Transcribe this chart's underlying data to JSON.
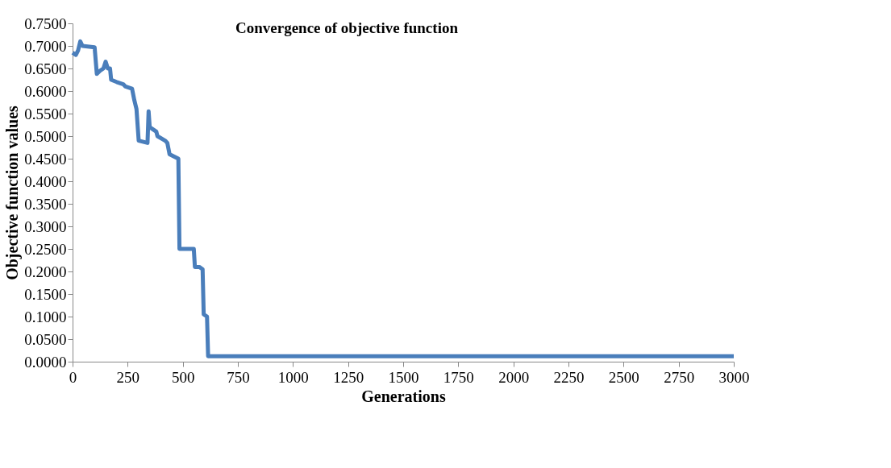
{
  "chart_data": {
    "type": "line",
    "title": "Convergence of objective function",
    "xlabel": "Generations",
    "ylabel": "Objective function values",
    "x": [
      0,
      15,
      25,
      35,
      45,
      100,
      110,
      125,
      140,
      150,
      160,
      170,
      175,
      200,
      230,
      240,
      270,
      280,
      290,
      300,
      340,
      345,
      350,
      365,
      380,
      385,
      420,
      430,
      440,
      460,
      480,
      485,
      550,
      555,
      575,
      590,
      595,
      610,
      615,
      3000
    ],
    "series": [
      {
        "color": "#4a7ebb",
        "values": [
          0.685,
          0.68,
          0.69,
          0.71,
          0.7,
          0.697,
          0.638,
          0.645,
          0.65,
          0.665,
          0.65,
          0.65,
          0.625,
          0.62,
          0.615,
          0.61,
          0.605,
          0.58,
          0.56,
          0.49,
          0.485,
          0.555,
          0.52,
          0.515,
          0.51,
          0.5,
          0.49,
          0.485,
          0.46,
          0.455,
          0.45,
          0.25,
          0.25,
          0.21,
          0.21,
          0.205,
          0.105,
          0.1,
          0.012,
          0.012
        ]
      }
    ],
    "xlim": [
      0,
      3000
    ],
    "xticks": [
      0,
      250,
      500,
      750,
      1000,
      1250,
      1500,
      1750,
      2000,
      2250,
      2500,
      2750,
      3000
    ],
    "ylim": [
      0,
      0.75
    ],
    "yticks": [
      {
        "value": 0,
        "label": "0.0000"
      },
      {
        "value": 0.05,
        "label": "0.0500"
      },
      {
        "value": 0.1,
        "label": "0.1000"
      },
      {
        "value": 0.15,
        "label": "0.1500"
      },
      {
        "value": 0.2,
        "label": "0.2000"
      },
      {
        "value": 0.25,
        "label": "0.2500"
      },
      {
        "value": 0.3,
        "label": "0.3000"
      },
      {
        "value": 0.35,
        "label": "0.3500"
      },
      {
        "value": 0.4,
        "label": "0.4000"
      },
      {
        "value": 0.45,
        "label": "0.4500"
      },
      {
        "value": 0.5,
        "label": "0.5000"
      },
      {
        "value": 0.55,
        "label": "0.5500"
      },
      {
        "value": 0.6,
        "label": "0.6000"
      },
      {
        "value": 0.65,
        "label": "0.6500"
      },
      {
        "value": 0.7,
        "label": "0.7000"
      },
      {
        "value": 0.75,
        "label": "0.7500"
      }
    ],
    "grid": false,
    "legend": false,
    "marker": "none",
    "line_style": "solid"
  }
}
